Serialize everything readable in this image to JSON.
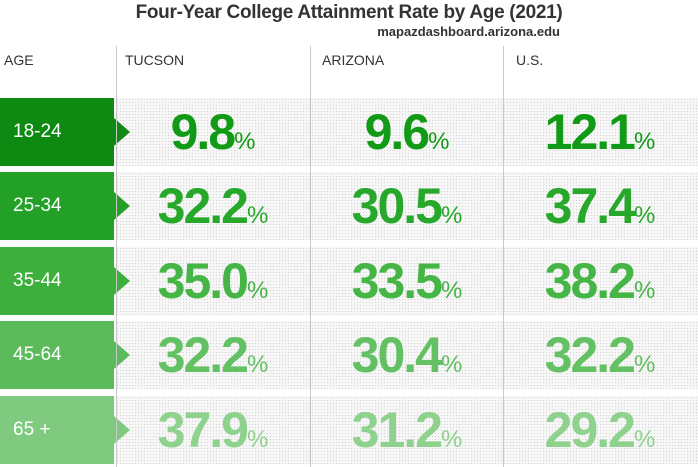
{
  "header": {
    "title": "Four-Year College Attainment Rate by Age (2021)",
    "source": "mapazdashboard.arizona.edu"
  },
  "table": {
    "columns": [
      "AGE",
      "TUCSON",
      "ARIZONA",
      "U.S."
    ],
    "unit": "%",
    "rows": [
      [
        "18-24",
        "9.8",
        "9.6",
        "12.1"
      ],
      [
        "25-34",
        "32.2",
        "30.5",
        "37.4"
      ],
      [
        "35-44",
        "35.0",
        "33.5",
        "38.2"
      ],
      [
        "45-64",
        "32.2",
        "30.4",
        "32.2"
      ],
      [
        "65 +",
        "37.9",
        "31.2",
        "29.2"
      ]
    ]
  }
}
